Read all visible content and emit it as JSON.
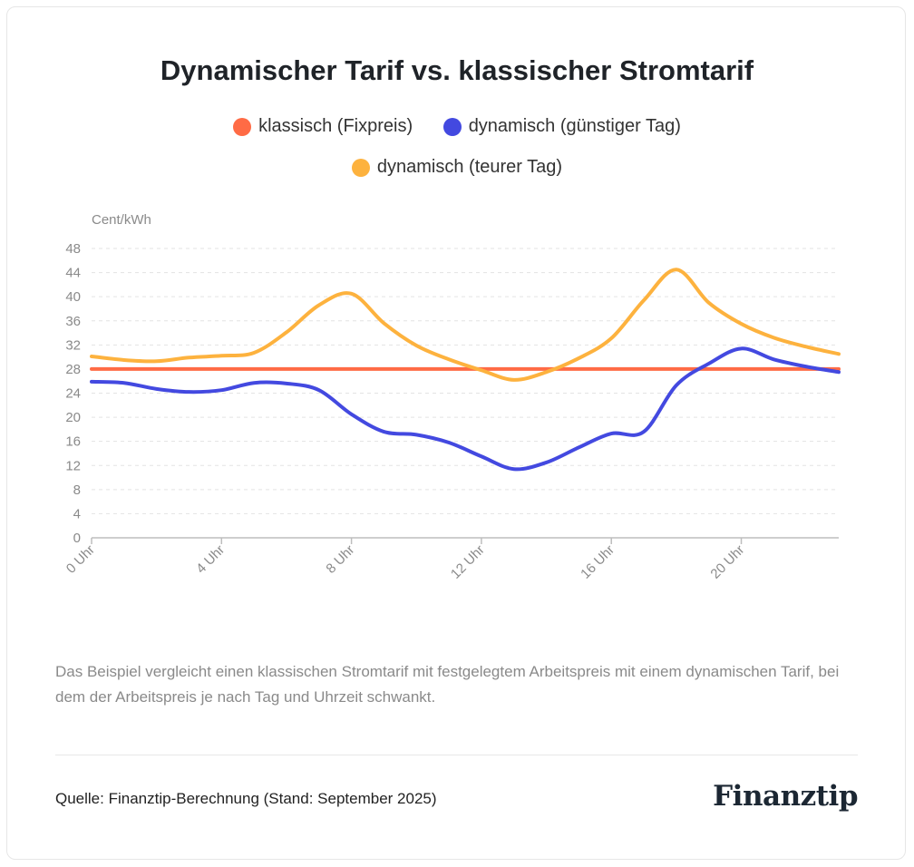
{
  "chart_data": {
    "type": "line",
    "title": "Dynamischer Tarif vs. klassischer Stromtarif",
    "ylabel": "Cent/kWh",
    "xlabel": "",
    "ylim": [
      0,
      48
    ],
    "yticks": [
      "0",
      "4",
      "8",
      "12",
      "16",
      "20",
      "24",
      "28",
      "32",
      "36",
      "40",
      "44",
      "48"
    ],
    "xtick_values": [
      0,
      4,
      8,
      12,
      16,
      20
    ],
    "xtick_labels": [
      "0 Uhr",
      "4 Uhr",
      "8 Uhr",
      "12 Uhr",
      "16 Uhr",
      "20 Uhr"
    ],
    "xlim": [
      0,
      23
    ],
    "grid": true,
    "legend_position": "top",
    "x": [
      0,
      1,
      2,
      3,
      4,
      5,
      6,
      7,
      8,
      9,
      10,
      11,
      12,
      13,
      14,
      15,
      16,
      17,
      18,
      19,
      20,
      21,
      22,
      23
    ],
    "series": [
      {
        "name": "klassisch (Fixpreis)",
        "color": "#ff6b45",
        "values": [
          28,
          28,
          28,
          28,
          28,
          28,
          28,
          28,
          28,
          28,
          28,
          28,
          28,
          28,
          28,
          28,
          28,
          28,
          28,
          28,
          28,
          28,
          28,
          28
        ]
      },
      {
        "name": "dynamisch (günstiger Tag)",
        "color": "#4349e0",
        "values": [
          25.9,
          25.7,
          24.7,
          24.2,
          24.5,
          25.7,
          25.6,
          24.5,
          20.5,
          17.6,
          17.1,
          15.8,
          13.5,
          11.4,
          12.5,
          15.0,
          17.3,
          17.6,
          25.3,
          28.9,
          31.4,
          29.6,
          28.4,
          27.5
        ]
      },
      {
        "name": "dynamisch (teurer Tag)",
        "color": "#fdb23e",
        "values": [
          30.1,
          29.5,
          29.3,
          29.9,
          30.2,
          30.7,
          34.1,
          38.6,
          40.5,
          35.6,
          31.9,
          29.6,
          27.8,
          26.2,
          27.5,
          29.8,
          33.1,
          39.4,
          44.5,
          39.0,
          35.5,
          33.2,
          31.7,
          30.5
        ]
      }
    ]
  },
  "description": "Das Beispiel vergleicht einen klassischen Stromtarif mit festgelegtem Arbeitspreis mit einem dynamischen Tarif, bei dem der Arbeitspreis je nach Tag und Uhrzeit schwankt.",
  "source": "Quelle: Finanztip-Berechnung (Stand: September 2025)",
  "logo": "Finanztip"
}
